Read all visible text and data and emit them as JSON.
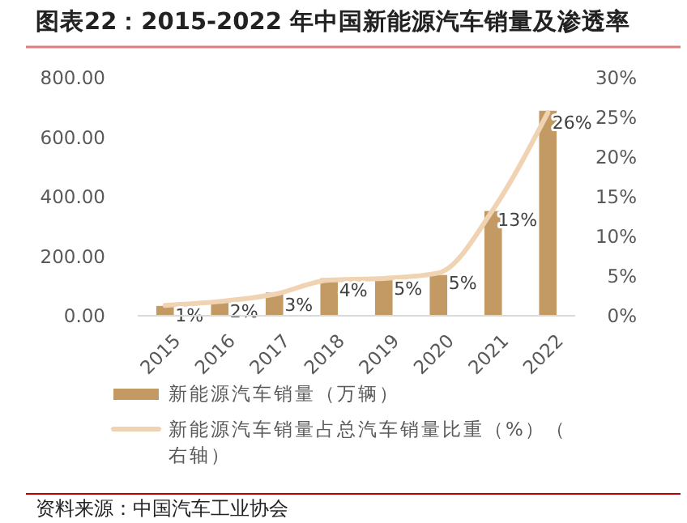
{
  "chart_data": {
    "type": "bar",
    "title": "图表22：2015-2022 年中国新能源汽车销量及渗透率",
    "categories": [
      "2015",
      "2016",
      "2017",
      "2018",
      "2019",
      "2020",
      "2021",
      "2022"
    ],
    "series": [
      {
        "name": "新能源汽车销量（万辆）",
        "color": "#c49a64",
        "values": [
          33,
          51,
          78,
          126,
          121,
          137,
          352,
          689
        ]
      },
      {
        "name": "新能源汽车销量占总汽车销量比重（%）（右轴）",
        "type": "line",
        "axis": "y2",
        "color": "#f0d3b2",
        "values": [
          1.3,
          1.8,
          2.7,
          4.5,
          4.7,
          5.4,
          13.4,
          25.6
        ],
        "value_labels": [
          "1%",
          "2%",
          "3%",
          "4%",
          "5%",
          "5%",
          "13%",
          "26%"
        ]
      }
    ],
    "ylim": [
      0,
      800
    ],
    "yticks": [
      {
        "value": 0,
        "label": "0.00"
      },
      {
        "value": 200,
        "label": "200.00"
      },
      {
        "value": 400,
        "label": "400.00"
      },
      {
        "value": 600,
        "label": "600.00"
      },
      {
        "value": 800,
        "label": "800.00"
      }
    ],
    "y2lim": [
      0,
      30
    ],
    "y2ticks": [
      {
        "value": 0,
        "label": "0%"
      },
      {
        "value": 5,
        "label": "5%"
      },
      {
        "value": 10,
        "label": "10%"
      },
      {
        "value": 15,
        "label": "15%"
      },
      {
        "value": 20,
        "label": "20%"
      },
      {
        "value": 25,
        "label": "25%"
      },
      {
        "value": 30,
        "label": "30%"
      }
    ],
    "legend": "bottom",
    "grid": false,
    "annotations": [
      "资料来源：中国汽车工业协会"
    ]
  }
}
